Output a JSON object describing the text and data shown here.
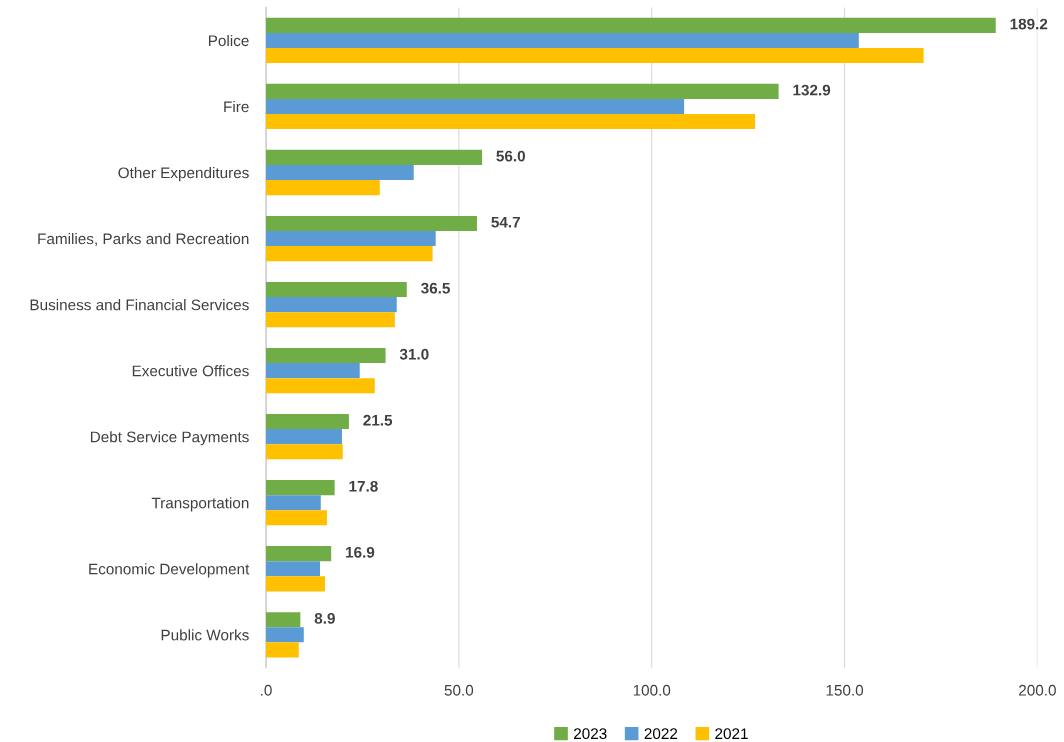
{
  "chart_data": {
    "type": "bar",
    "orientation": "horizontal",
    "categories": [
      "Police",
      "Fire",
      "Other Expenditures",
      "Families, Parks and Recreation",
      "Business and Financial Services",
      "Executive Offices",
      "Debt Service Payments",
      "Transportation",
      "Economic Development",
      "Public Works"
    ],
    "series": [
      {
        "name": "2023",
        "color": "#70ad47",
        "values": [
          189.2,
          132.9,
          56.0,
          54.7,
          36.5,
          31.0,
          21.5,
          17.8,
          16.9,
          8.9
        ],
        "value_labels": [
          "189.2",
          "132.9",
          "56.0",
          "54.7",
          "36.5",
          "31.0",
          "21.5",
          "17.8",
          "16.9",
          "8.9"
        ]
      },
      {
        "name": "2022",
        "color": "#5b9bd5",
        "values": [
          153.7,
          108.4,
          38.3,
          44.0,
          33.9,
          24.3,
          19.7,
          14.2,
          14.0,
          9.8
        ]
      },
      {
        "name": "2021",
        "color": "#ffc000",
        "values": [
          170.5,
          126.8,
          29.5,
          43.2,
          33.4,
          28.2,
          19.9,
          15.8,
          15.3,
          8.5
        ]
      }
    ],
    "xlim": [
      0,
      200
    ],
    "xticks": [
      {
        "value": 0,
        "label": ".0"
      },
      {
        "value": 50,
        "label": "50.0"
      },
      {
        "value": 100,
        "label": "100.0"
      },
      {
        "value": 150,
        "label": "150.0"
      },
      {
        "value": 200,
        "label": "200.0"
      }
    ],
    "grid": "x",
    "legend": "bottom"
  }
}
